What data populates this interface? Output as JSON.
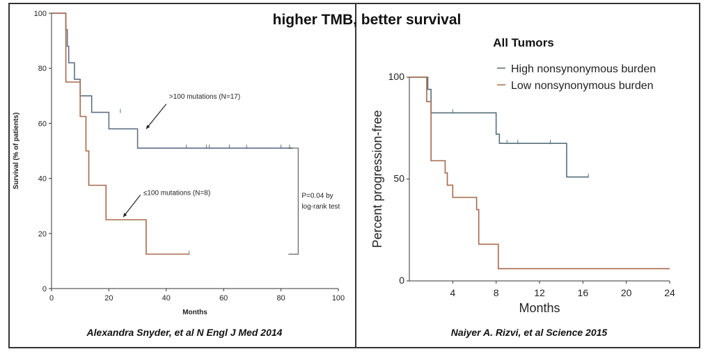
{
  "headline": "higher TMB, better survival",
  "chart_data": [
    {
      "type": "line",
      "step": true,
      "title": "",
      "xlabel": "Months",
      "ylabel": "Survival (% of patients)",
      "xlim": [
        0,
        100
      ],
      "ylim": [
        0,
        100
      ],
      "xticks": [
        0,
        20,
        40,
        60,
        80,
        100
      ],
      "yticks": [
        0,
        20,
        40,
        60,
        80,
        100
      ],
      "grid": false,
      "series": [
        {
          "name": ">100 mutations (N=17)",
          "color": "#5f6f86",
          "x": [
            0,
            5,
            5.5,
            6,
            8,
            10,
            14,
            20,
            24,
            30,
            34,
            84
          ],
          "y": [
            100,
            94,
            88,
            82,
            76,
            70,
            64,
            58,
            58,
            51,
            51,
            51
          ],
          "censor_x": [
            24,
            47,
            54,
            55,
            62,
            68,
            80,
            83
          ],
          "censor_y": [
            64,
            51,
            51,
            51,
            51,
            51,
            51,
            51
          ]
        },
        {
          "name": "≤100 mutations (N=8)",
          "color": "#a7684a",
          "x": [
            0,
            5,
            10,
            12,
            13,
            19,
            33,
            48
          ],
          "y": [
            100,
            75,
            62.5,
            50,
            37.5,
            25,
            12.5,
            12.5
          ],
          "censor_x": [
            48
          ],
          "censor_y": [
            12.5
          ]
        }
      ],
      "annotations": [
        {
          "text": ">100 mutations (N=17)",
          "x": 41,
          "y": 69
        },
        {
          "text": "≤100 mutations (N=8)",
          "x": 32,
          "y": 34
        }
      ],
      "pvalue": {
        "line1": "P=0.04 by",
        "line2": "log-rank test",
        "bracket_top": 51,
        "bracket_bottom": 12.5,
        "x": 86
      },
      "citation": "Alexandra Snyder, et al N Engl J Med 2014"
    },
    {
      "type": "line",
      "step": true,
      "title": "All Tumors",
      "xlabel": "Months",
      "ylabel": "Percent progression-free",
      "xlim": [
        0,
        24
      ],
      "ylim": [
        0,
        100
      ],
      "xticks": [
        4,
        8,
        12,
        16,
        20,
        24
      ],
      "yticks": [
        0,
        50,
        100
      ],
      "grid": false,
      "legend": "top-right",
      "series": [
        {
          "name": "High nonsynonymous burden",
          "color": "#55707a",
          "x": [
            0,
            1.7,
            2,
            8,
            8.3,
            14.5,
            16.5
          ],
          "y": [
            100,
            94,
            82.5,
            72,
            67.5,
            51,
            51
          ],
          "censor_x": [
            4,
            9,
            10,
            13,
            16.5
          ],
          "censor_y": [
            82.5,
            67.5,
            67.5,
            67.5,
            51
          ]
        },
        {
          "name": "Low nonsynonymous burden",
          "color": "#a7684a",
          "x": [
            0,
            1.6,
            2,
            3.3,
            3.5,
            4,
            6.2,
            6.4,
            8.2,
            24
          ],
          "y": [
            100,
            88,
            59,
            53,
            47,
            41,
            35,
            18,
            6,
            6
          ],
          "censor_x": [],
          "censor_y": []
        }
      ],
      "citation": "Naiyer A. Rizvi, et al Science 2015"
    }
  ]
}
